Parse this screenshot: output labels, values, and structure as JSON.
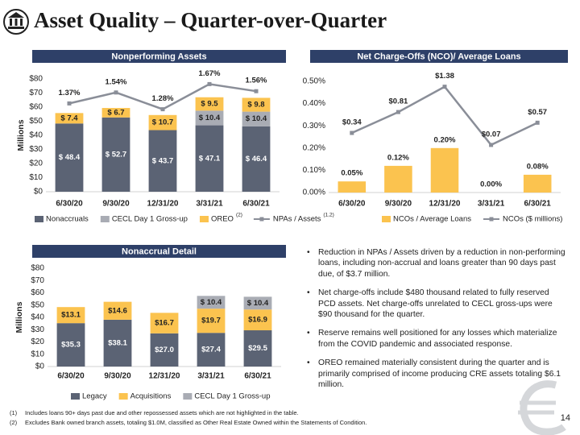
{
  "header": {
    "title": "Asset Quality – Quarter-over-Quarter"
  },
  "chart_data": [
    {
      "type": "bar",
      "stacked": true,
      "title": "Nonperforming Assets",
      "ylabel": "Millions",
      "categories": [
        "6/30/20",
        "9/30/20",
        "12/31/20",
        "3/31/21",
        "6/30/21"
      ],
      "series": [
        {
          "name": "Nonaccruals",
          "color": "#5b6374",
          "values": [
            48.4,
            52.7,
            43.7,
            47.1,
            46.4
          ],
          "value_labels": [
            "$ 48.4",
            "$ 52.7",
            "$ 43.7",
            "$ 47.1",
            "$ 46.4"
          ]
        },
        {
          "name": "CECL Day 1 Gross-up",
          "color": "#a9acb4",
          "values": [
            null,
            null,
            null,
            10.4,
            10.4
          ],
          "value_labels": [
            null,
            null,
            null,
            "$ 10.4",
            "$ 10.4"
          ]
        },
        {
          "name": "OREO",
          "note": "(2)",
          "color": "#fbc34f",
          "values": [
            7.4,
            6.7,
            10.7,
            9.5,
            9.8
          ],
          "value_labels": [
            "$ 7.4",
            "$ 6.7",
            "$ 10.7",
            "$ 9.5",
            "$ 9.8"
          ]
        },
        {
          "name": "NPAs / Assets",
          "note": "(1,2)",
          "type": "line",
          "axis": "y2",
          "color": "#8a8e98",
          "values": [
            1.37,
            1.54,
            1.28,
            1.67,
            1.56
          ],
          "value_labels": [
            "1.37%",
            "1.54%",
            "1.28%",
            "1.67%",
            "1.56%"
          ]
        }
      ],
      "ylim": [
        0,
        80
      ],
      "yticks": [
        {
          "value": 0,
          "label": "$0"
        },
        {
          "value": 10,
          "label": "$10"
        },
        {
          "value": 20,
          "label": "$20"
        },
        {
          "value": 30,
          "label": "$30"
        },
        {
          "value": 40,
          "label": "$40"
        },
        {
          "value": 50,
          "label": "$50"
        },
        {
          "value": 60,
          "label": "$60"
        },
        {
          "value": 70,
          "label": "$70"
        },
        {
          "value": 80,
          "label": "$80"
        }
      ],
      "y2lim": [
        0,
        1.75
      ]
    },
    {
      "type": "bar",
      "stacked": false,
      "title": "Net Charge-Offs (NCO)/ Average Loans",
      "categories": [
        "6/30/20",
        "9/30/20",
        "12/31/20",
        "3/31/21",
        "6/30/21"
      ],
      "series": [
        {
          "name": "NCOs / Average Loans",
          "color": "#fbc34f",
          "values": [
            0.05,
            0.12,
            0.2,
            0,
            0.08
          ],
          "value_labels": [
            "0.05%",
            "0.12%",
            "0.20%",
            "0.00%",
            "0.08%"
          ]
        },
        {
          "name": "NCOs ($ millions)",
          "type": "line",
          "axis": "y2",
          "color": "#8a8e98",
          "values": [
            0.34,
            0.81,
            1.38,
            0.07,
            0.57
          ],
          "value_labels": [
            "$0.34",
            "$0.81",
            "$1.38",
            "$0.07",
            "$0.57"
          ]
        }
      ],
      "ylim": [
        0,
        0.5
      ],
      "yticks": [
        {
          "value": 0,
          "label": "0.00%"
        },
        {
          "value": 0.1,
          "label": "0.10%"
        },
        {
          "value": 0.2,
          "label": "0.20%"
        },
        {
          "value": 0.3,
          "label": "0.30%"
        },
        {
          "value": 0.4,
          "label": "0.40%"
        },
        {
          "value": 0.5,
          "label": "0.50%"
        }
      ],
      "y2lim": [
        -1,
        1.5
      ]
    },
    {
      "type": "bar",
      "stacked": true,
      "title": "Nonaccrual Detail",
      "ylabel": "Millions",
      "categories": [
        "6/30/20",
        "9/30/20",
        "12/31/20",
        "3/31/21",
        "6/30/21"
      ],
      "series": [
        {
          "name": "Legacy",
          "color": "#5b6374",
          "values": [
            35.3,
            38.1,
            27.0,
            27.4,
            29.5
          ],
          "value_labels": [
            "$35.3",
            "$38.1",
            "$27.0",
            "$27.4",
            "$29.5"
          ]
        },
        {
          "name": "Acquisitions",
          "color": "#fbc34f",
          "values": [
            13.1,
            14.6,
            16.7,
            19.7,
            16.9
          ],
          "value_labels": [
            "$13.1",
            "$14.6",
            "$16.7",
            "$19.7",
            "$16.9"
          ]
        },
        {
          "name": "CECL Day 1 Gross-up",
          "color": "#a9acb4",
          "values": [
            null,
            null,
            null,
            10.4,
            10.4
          ],
          "value_labels": [
            null,
            null,
            null,
            "$ 10.4",
            "$ 10.4"
          ]
        }
      ],
      "ylim": [
        0,
        80
      ],
      "yticks": [
        {
          "value": 0,
          "label": "$0"
        },
        {
          "value": 10,
          "label": "$10"
        },
        {
          "value": 20,
          "label": "$20"
        },
        {
          "value": 30,
          "label": "$30"
        },
        {
          "value": 40,
          "label": "$40"
        },
        {
          "value": 50,
          "label": "$50"
        },
        {
          "value": 60,
          "label": "$60"
        },
        {
          "value": 70,
          "label": "$70"
        },
        {
          "value": 80,
          "label": "$80"
        }
      ]
    }
  ],
  "bullets": [
    "Reduction in NPAs / Assets driven by a reduction in non-performing loans, including non-accrual and loans greater than 90 days past due, of $3.7 million.",
    "Net charge-offs include $480 thousand related to fully reserved PCD assets.  Net charge-offs unrelated to CECL gross-ups were $90 thousand for the quarter.",
    "Reserve remains well positioned for any losses which materialize from the COVID pandemic and associated response.",
    "OREO remained materially consistent during the quarter and is primarily comprised of income producing CRE assets totaling $6.1 million."
  ],
  "footnotes": [
    {
      "marker": "(1)",
      "text": "Includes loans 90+ days past due and other repossessed assets which are not highlighted in the table."
    },
    {
      "marker": "(2)",
      "text": "Excludes Bank owned branch assets, totaling $1.0M, classified as Other Real Estate Owned within the Statements of Condition."
    }
  ],
  "page_number": "14"
}
